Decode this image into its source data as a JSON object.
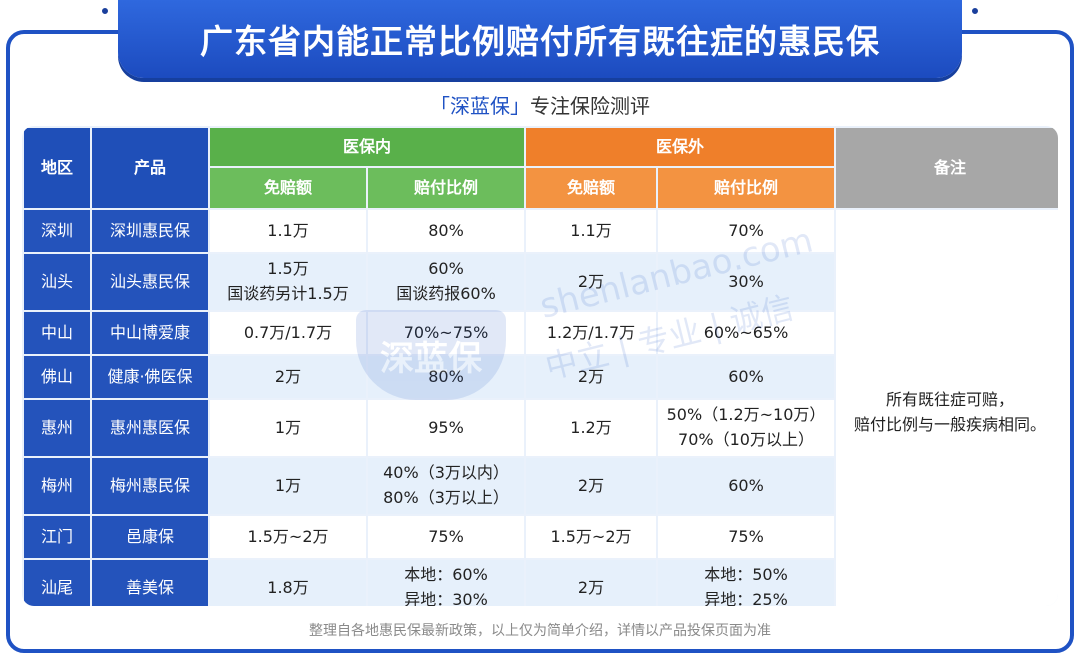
{
  "title": "广东省内能正常比例赔付所有既往症的惠民保",
  "subtitle": {
    "brand": "「深蓝保」",
    "text": "专注保险测评"
  },
  "headers": {
    "region": "地区",
    "product": "产品",
    "inside": "医保内",
    "outside": "医保外",
    "deductible": "免赔额",
    "ratio": "赔付比例",
    "note": "备注"
  },
  "note": {
    "line1": "所有既往症可赔，",
    "line2": "赔付比例与一般疾病相同。"
  },
  "rows": [
    {
      "region": "深圳",
      "product": "深圳惠民保",
      "in_deductible": [
        "1.1万"
      ],
      "in_ratio": [
        "80%"
      ],
      "out_deductible": [
        "1.1万"
      ],
      "out_ratio": [
        "70%"
      ]
    },
    {
      "region": "汕头",
      "product": "汕头惠民保",
      "in_deductible": [
        "1.5万",
        "国谈药另计1.5万"
      ],
      "in_ratio": [
        "60%",
        "国谈药报60%"
      ],
      "out_deductible": [
        "2万"
      ],
      "out_ratio": [
        "30%"
      ]
    },
    {
      "region": "中山",
      "product": "中山博爱康",
      "in_deductible": [
        "0.7万/1.7万"
      ],
      "in_ratio": [
        "70%~75%"
      ],
      "out_deductible": [
        "1.2万/1.7万"
      ],
      "out_ratio": [
        "60%~65%"
      ]
    },
    {
      "region": "佛山",
      "product": "健康·佛医保",
      "in_deductible": [
        "2万"
      ],
      "in_ratio": [
        "80%"
      ],
      "out_deductible": [
        "2万"
      ],
      "out_ratio": [
        "60%"
      ]
    },
    {
      "region": "惠州",
      "product": "惠州惠医保",
      "in_deductible": [
        "1万"
      ],
      "in_ratio": [
        "95%"
      ],
      "out_deductible": [
        "1.2万"
      ],
      "out_ratio": [
        "50%（1.2万~10万）",
        "70%（10万以上）"
      ]
    },
    {
      "region": "梅州",
      "product": "梅州惠民保",
      "in_deductible": [
        "1万"
      ],
      "in_ratio": [
        "40%（3万以内）",
        "80%（3万以上）"
      ],
      "out_deductible": [
        "2万"
      ],
      "out_ratio": [
        "60%"
      ]
    },
    {
      "region": "江门",
      "product": "邑康保",
      "in_deductible": [
        "1.5万~2万"
      ],
      "in_ratio": [
        "75%"
      ],
      "out_deductible": [
        "1.5万~2万"
      ],
      "out_ratio": [
        "75%"
      ]
    },
    {
      "region": "汕尾",
      "product": "善美保",
      "in_deductible": [
        "1.8万"
      ],
      "in_ratio": [
        "本地：60%",
        "异地：30%"
      ],
      "out_deductible": [
        "2万"
      ],
      "out_ratio": [
        "本地：50%",
        "异地：25%"
      ]
    }
  ],
  "watermark": {
    "logo": "深蓝保",
    "domain": "shenlanbao.com",
    "slogan": "中立 | 专业 | 诚信"
  },
  "footer": "整理自各地惠民保最新政策，以上仅为简单介绍，详情以产品投保页面为准",
  "colors": {
    "primary": "#1f52c4",
    "inside": "#59b04a",
    "outside": "#ef7f2a",
    "note": "#a7a7a7"
  }
}
